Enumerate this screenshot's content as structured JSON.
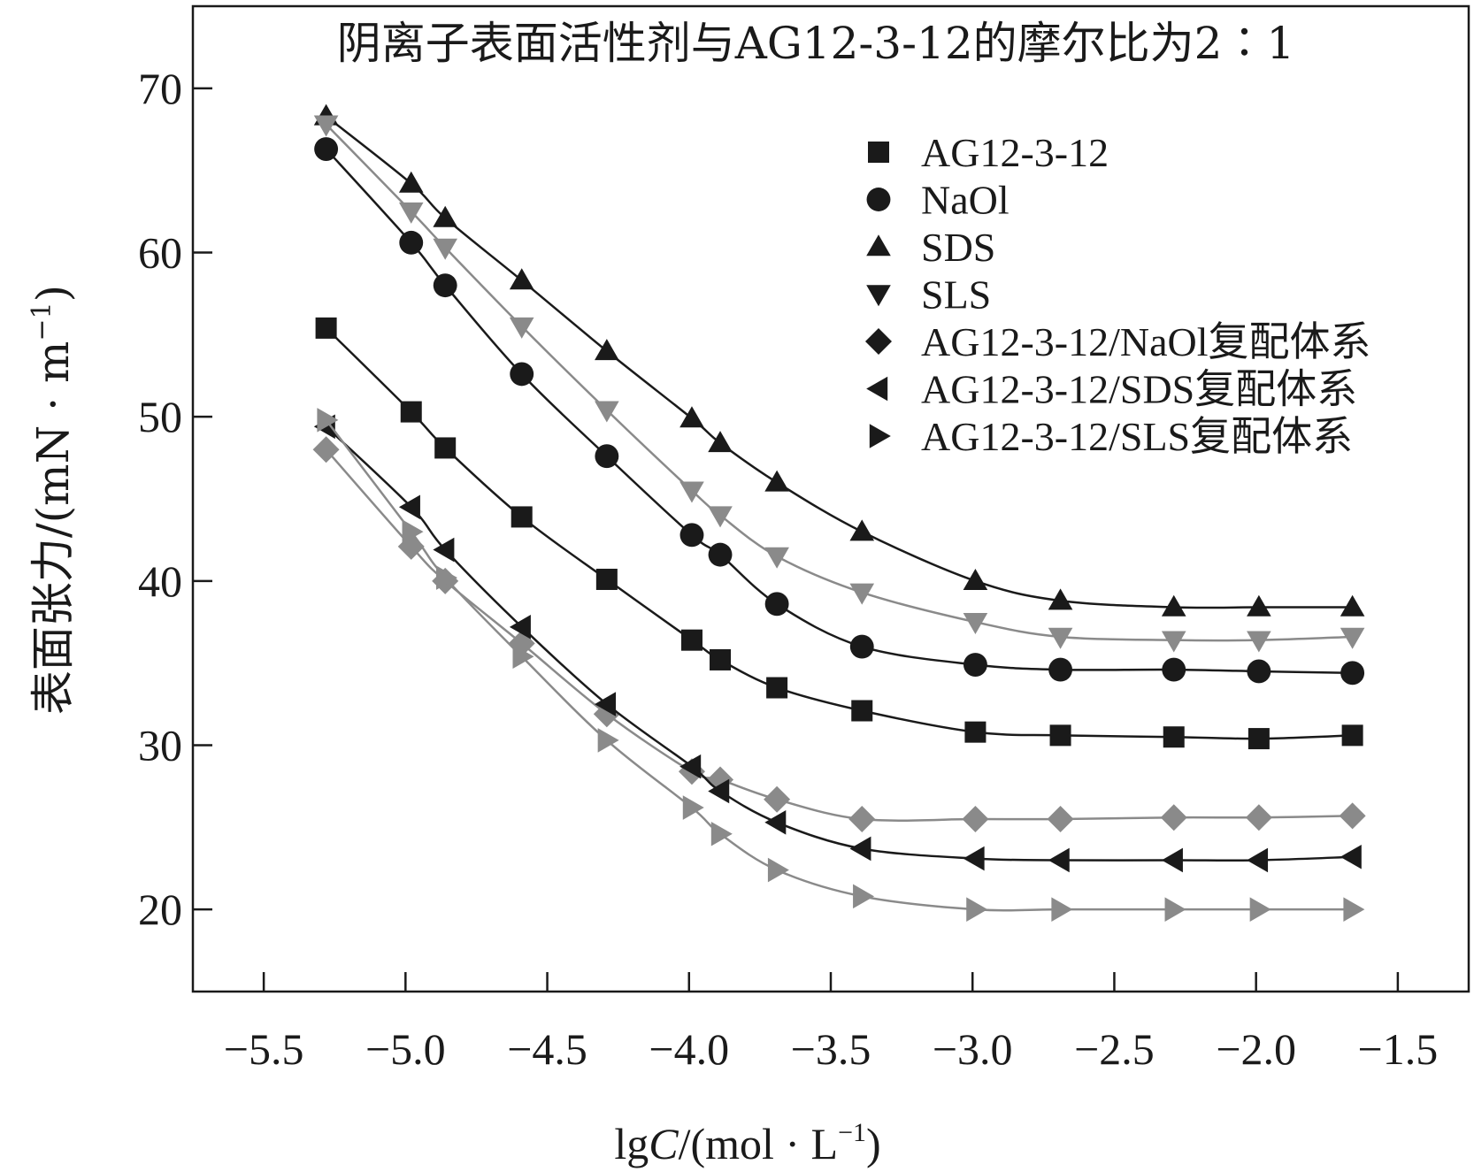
{
  "chart_data": {
    "type": "line",
    "title": "阴离子表面活性剂与AG12-3-12的摩尔比为2∶1",
    "xlabel": {
      "prefix": "lg",
      "italic": "C",
      "unit": "/(mol · L",
      "sup": "−1",
      "close": ")"
    },
    "ylabel": {
      "main": "表面张力/(mN · m",
      "sup": "−1",
      "close": ")"
    },
    "xlim": [
      -5.75,
      -1.25
    ],
    "ylim": [
      15,
      75
    ],
    "xticks": [
      -5.5,
      -5.0,
      -4.5,
      -4.0,
      -3.5,
      -3.0,
      -2.5,
      -2.0,
      -1.5
    ],
    "xtick_labels": [
      "−5.5",
      "−5.0",
      "−4.5",
      "−4.0",
      "−3.5",
      "−3.0",
      "−2.5",
      "−2.0",
      "−1.5"
    ],
    "yticks": [
      20,
      30,
      40,
      50,
      60,
      70
    ],
    "ytick_labels": [
      "20",
      "30",
      "40",
      "50",
      "60",
      "70"
    ],
    "grid": false,
    "legend_position": "top-right",
    "x": [
      -5.28,
      -4.98,
      -4.86,
      -4.59,
      -4.29,
      -3.99,
      -3.89,
      -3.69,
      -3.39,
      -2.99,
      -2.69,
      -2.29,
      -1.99,
      -1.66
    ],
    "series": [
      {
        "name": "AG12-3-12",
        "marker": "square",
        "color": "#1a1a1a",
        "values": [
          55.4,
          50.3,
          48.1,
          43.9,
          40.1,
          36.4,
          35.2,
          33.5,
          32.1,
          30.8,
          30.6,
          30.5,
          30.4,
          30.6
        ]
      },
      {
        "name": "NaOl",
        "marker": "circle",
        "color": "#1a1a1a",
        "values": [
          66.3,
          60.6,
          58.0,
          52.6,
          47.6,
          42.8,
          41.6,
          38.6,
          36.0,
          34.9,
          34.6,
          34.6,
          34.5,
          34.4
        ]
      },
      {
        "name": "SDS",
        "marker": "triangle-up",
        "color": "#1a1a1a",
        "values": [
          68.3,
          64.2,
          62.1,
          58.3,
          54.0,
          49.9,
          48.4,
          46.0,
          43.0,
          40.0,
          38.8,
          38.4,
          38.4,
          38.4
        ]
      },
      {
        "name": "SLS",
        "marker": "triangle-down",
        "color": "#8a8a8a",
        "values": [
          67.8,
          62.5,
          60.3,
          55.5,
          50.4,
          45.5,
          44.0,
          41.5,
          39.3,
          37.5,
          36.6,
          36.4,
          36.4,
          36.6
        ]
      },
      {
        "name": "AG12-3-12/NaOl复配体系",
        "marker": "diamond",
        "color": "#8a8a8a",
        "values": [
          48.0,
          42.1,
          40.0,
          36.2,
          31.9,
          28.4,
          27.9,
          26.7,
          25.5,
          25.5,
          25.5,
          25.6,
          25.6,
          25.7
        ]
      },
      {
        "name": "AG12-3-12/SDS复配体系",
        "marker": "triangle-left",
        "color": "#1a1a1a",
        "values": [
          49.4,
          44.5,
          41.9,
          37.2,
          32.5,
          28.7,
          27.2,
          25.3,
          23.7,
          23.1,
          23.0,
          23.0,
          23.0,
          23.2
        ]
      },
      {
        "name": "AG12-3-12/SLS复配体系",
        "marker": "triangle-right",
        "color": "#8a8a8a",
        "values": [
          49.8,
          43.0,
          40.2,
          35.4,
          30.3,
          26.2,
          24.6,
          22.4,
          20.8,
          20.0,
          20.0,
          20.0,
          20.0,
          20.0
        ]
      }
    ]
  }
}
